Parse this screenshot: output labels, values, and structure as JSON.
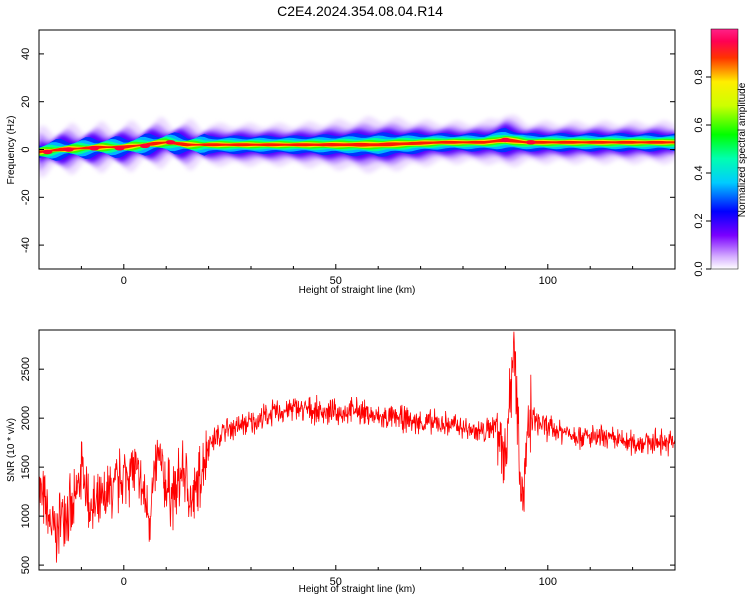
{
  "title": "C2E4.2024.354.08.04.R14",
  "chart_data": [
    {
      "type": "heatmap",
      "xlabel": "Height of straight line (km)",
      "ylabel": "Frequency (Hz)",
      "xlim": [
        -20,
        130
      ],
      "ylim": [
        -50,
        50
      ],
      "xticks": [
        0,
        50,
        100
      ],
      "yticks": [
        -40,
        -20,
        0,
        20,
        40
      ],
      "colorbar": {
        "label": "Normalized spectral amplitude",
        "ticks": [
          0.0,
          0.2,
          0.4,
          0.6,
          0.8
        ],
        "range": [
          0.0,
          1.0
        ]
      },
      "ridge": {
        "x": [
          -20,
          -15,
          -10,
          -5,
          0,
          5,
          10,
          15,
          20,
          40,
          60,
          75,
          85,
          90,
          95,
          100,
          110,
          130
        ],
        "freq": [
          -1,
          0,
          0.5,
          1,
          1,
          2,
          3,
          2,
          2,
          2,
          2,
          3,
          3,
          4,
          3,
          3,
          3,
          3
        ],
        "width": [
          3,
          3,
          3,
          3,
          3,
          3,
          3,
          3,
          3,
          3,
          4,
          3,
          3,
          4,
          3,
          3,
          3,
          3
        ]
      }
    },
    {
      "type": "line",
      "xlabel": "Height of straight line (km)",
      "ylabel": "SNR (10 * v/v)",
      "xlim": [
        -20,
        130
      ],
      "ylim": [
        450,
        2900
      ],
      "xticks": [
        0,
        50,
        100
      ],
      "yticks": [
        500,
        1000,
        1500,
        2000,
        2500
      ],
      "line_color": "#ff0000",
      "series": [
        {
          "x": [
            -20,
            -18,
            -16,
            -14,
            -12,
            -10,
            -8,
            -6,
            -4,
            -2,
            0,
            2,
            4,
            6,
            8,
            10,
            12,
            14,
            16,
            18,
            20,
            25,
            30,
            35,
            40,
            45,
            50,
            55,
            60,
            65,
            70,
            75,
            80,
            85,
            88,
            90,
            92,
            94,
            96,
            100,
            105,
            110,
            115,
            120,
            125,
            130
          ],
          "values": [
            1300,
            1000,
            800,
            1100,
            1000,
            1500,
            1100,
            1050,
            1200,
            1300,
            1400,
            1500,
            1300,
            1000,
            1600,
            1300,
            1200,
            1500,
            1100,
            1400,
            1750,
            1900,
            1950,
            2050,
            2100,
            2080,
            2050,
            2080,
            2000,
            2000,
            1950,
            1950,
            1900,
            1850,
            1950,
            1600,
            2800,
            1200,
            2000,
            1900,
            1850,
            1800,
            1780,
            1750,
            1760,
            1750
          ]
        }
      ]
    }
  ]
}
